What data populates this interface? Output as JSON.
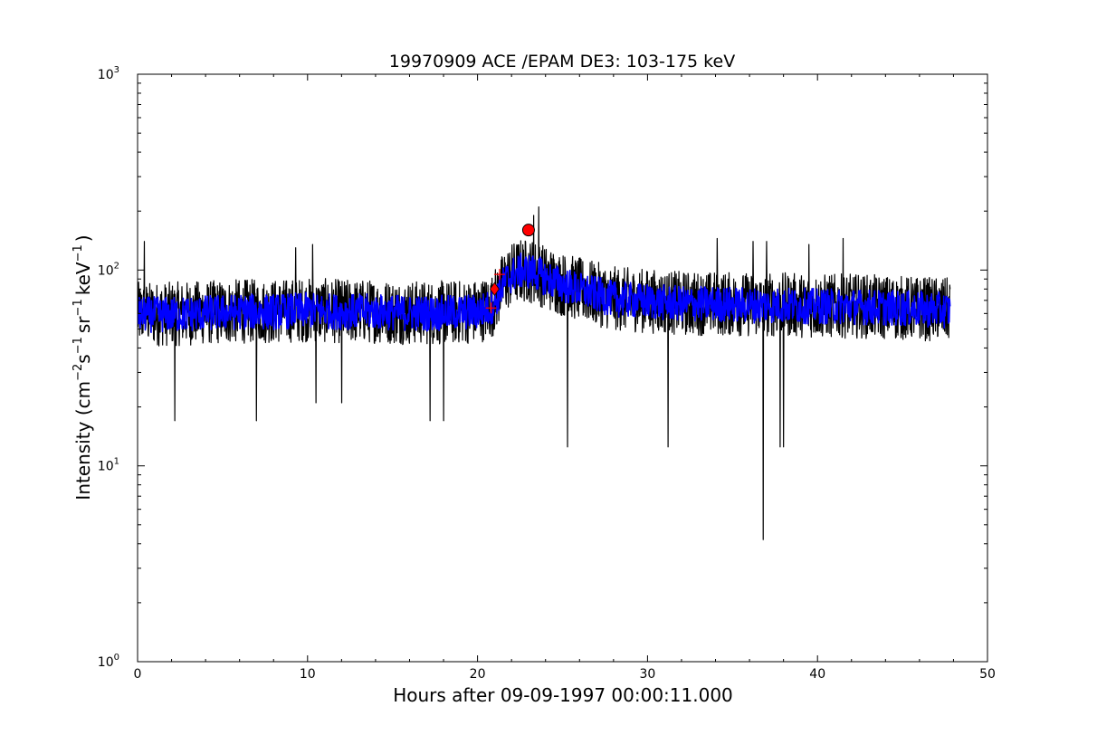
{
  "chart_data": {
    "type": "line",
    "title": "19970909 ACE /EPAM DE3: 103-175 keV",
    "xlabel": "Hours after 09-09-1997 00:00:11.000",
    "ylabel_parts": {
      "open": "Intensity (cm",
      "exp1": "−2",
      "s": "s",
      "exp2": "−1",
      "sr": "sr",
      "exp3": "−1",
      "kev": "keV",
      "exp4": "−1",
      "close": ")"
    },
    "xlim": [
      0,
      50
    ],
    "ylim": [
      1,
      1000
    ],
    "yscale": "log",
    "grid": false,
    "x_ticks": [
      {
        "value": 0,
        "label": "0"
      },
      {
        "value": 10,
        "label": "10"
      },
      {
        "value": 20,
        "label": "20"
      },
      {
        "value": 30,
        "label": "30"
      },
      {
        "value": 40,
        "label": "40"
      },
      {
        "value": 50,
        "label": "50"
      }
    ],
    "y_ticks": [
      {
        "value": 1,
        "base": "10",
        "exp": "0"
      },
      {
        "value": 10,
        "base": "10",
        "exp": "1"
      },
      {
        "value": 100,
        "base": "10",
        "exp": "2"
      },
      {
        "value": 1000,
        "base": "10",
        "exp": "3"
      }
    ],
    "series": [
      {
        "color": "#000000",
        "x": [
          0,
          2,
          4,
          6,
          8,
          10,
          12,
          14,
          16,
          18,
          20,
          20.8,
          21.2,
          21.6,
          22,
          22.5,
          23,
          23.5,
          24,
          25,
          26,
          27,
          28,
          30,
          32,
          34,
          36,
          38,
          40,
          42,
          44,
          46,
          47.8
        ],
        "y": [
          60,
          60,
          61,
          62,
          62,
          63,
          62,
          62,
          61,
          61,
          62,
          65,
          75,
          88,
          95,
          100,
          100,
          98,
          92,
          85,
          80,
          76,
          72,
          70,
          68,
          68,
          67,
          67,
          66,
          66,
          65,
          64,
          63
        ],
        "spread_hi": 1.45,
        "spread_lo": 0.68,
        "spikes": [
          {
            "x": 2.2,
            "y": 17
          },
          {
            "x": 7.0,
            "y": 17
          },
          {
            "x": 10.5,
            "y": 21
          },
          {
            "x": 12.0,
            "y": 21
          },
          {
            "x": 17.2,
            "y": 17
          },
          {
            "x": 18.0,
            "y": 17
          },
          {
            "x": 25.3,
            "y": 12.5
          },
          {
            "x": 31.2,
            "y": 12.5
          },
          {
            "x": 36.8,
            "y": 4.2
          },
          {
            "x": 37.8,
            "y": 12.5
          },
          {
            "x": 38.0,
            "y": 12.5
          },
          {
            "x": 0.4,
            "y": 140
          },
          {
            "x": 9.3,
            "y": 130
          },
          {
            "x": 10.3,
            "y": 135
          },
          {
            "x": 23.6,
            "y": 210
          },
          {
            "x": 23.3,
            "y": 190
          },
          {
            "x": 34.1,
            "y": 145
          },
          {
            "x": 36.2,
            "y": 140
          },
          {
            "x": 37.0,
            "y": 140
          },
          {
            "x": 39.5,
            "y": 135
          },
          {
            "x": 41.5,
            "y": 145
          }
        ]
      },
      {
        "color": "#0000ff",
        "x": [
          0,
          2,
          4,
          6,
          8,
          10,
          12,
          14,
          16,
          18,
          20,
          20.8,
          21.2,
          21.6,
          22,
          22.5,
          23,
          23.5,
          24,
          25,
          26,
          27,
          28,
          30,
          32,
          34,
          36,
          38,
          40,
          42,
          44,
          46,
          47.8
        ],
        "y": [
          60,
          60,
          61,
          62,
          62,
          63,
          62,
          62,
          61,
          61,
          62,
          65,
          75,
          88,
          95,
          100,
          100,
          98,
          92,
          85,
          80,
          76,
          72,
          70,
          68,
          68,
          67,
          67,
          66,
          66,
          65,
          64,
          63
        ],
        "spread_hi": 1.22,
        "spread_lo": 0.8
      }
    ],
    "markers": [
      {
        "shape": "plus",
        "x": 20.8,
        "y": 64,
        "color": "#ff0000"
      },
      {
        "shape": "diamond",
        "x": 21.0,
        "y": 80,
        "color": "#ff0000"
      },
      {
        "shape": "plus",
        "x": 21.3,
        "y": 95,
        "color": "#ff0000"
      },
      {
        "shape": "circle",
        "x": 23.0,
        "y": 160,
        "color": "#ff0000"
      }
    ]
  }
}
